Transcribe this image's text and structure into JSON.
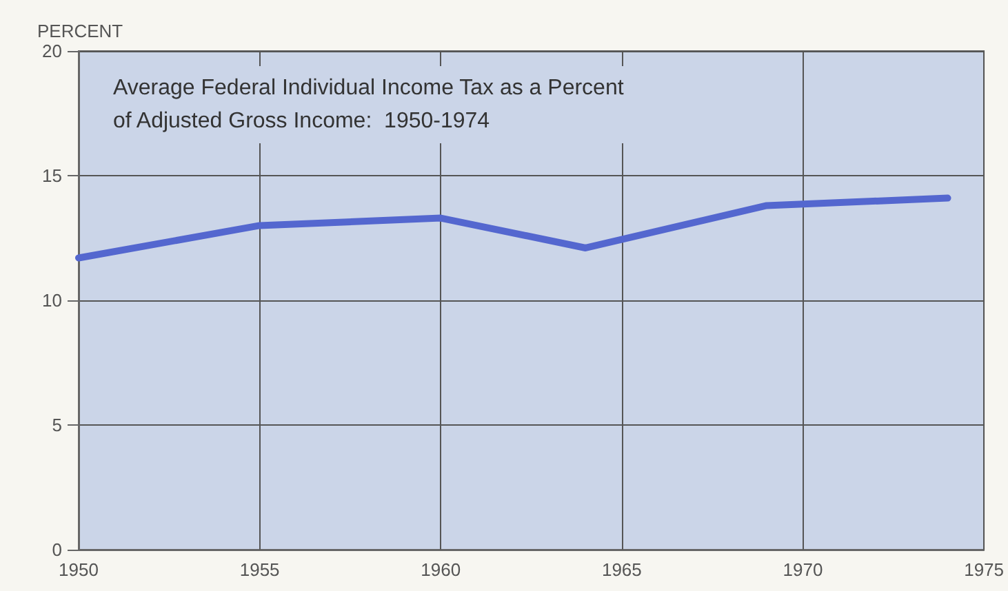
{
  "chart_data": {
    "type": "line",
    "title": "Average Federal Individual Income Tax as a Percent\nof Adjusted Gross Income:  1950-1974",
    "ylabel": "PERCENT",
    "x": [
      1950,
      1955,
      1960,
      1964,
      1969,
      1974
    ],
    "series": [
      {
        "color": "#5467cf",
        "values": [
          11.7,
          13.0,
          13.3,
          12.1,
          13.8,
          14.1
        ]
      }
    ],
    "xlim": [
      1950,
      1975
    ],
    "xticks": [
      1950,
      1955,
      1960,
      1965,
      1970,
      1975
    ],
    "ylim": [
      0,
      20
    ],
    "yticks": [
      0,
      5,
      10,
      15,
      20
    ],
    "grid": true,
    "marker": "none",
    "line_style": "solid"
  }
}
